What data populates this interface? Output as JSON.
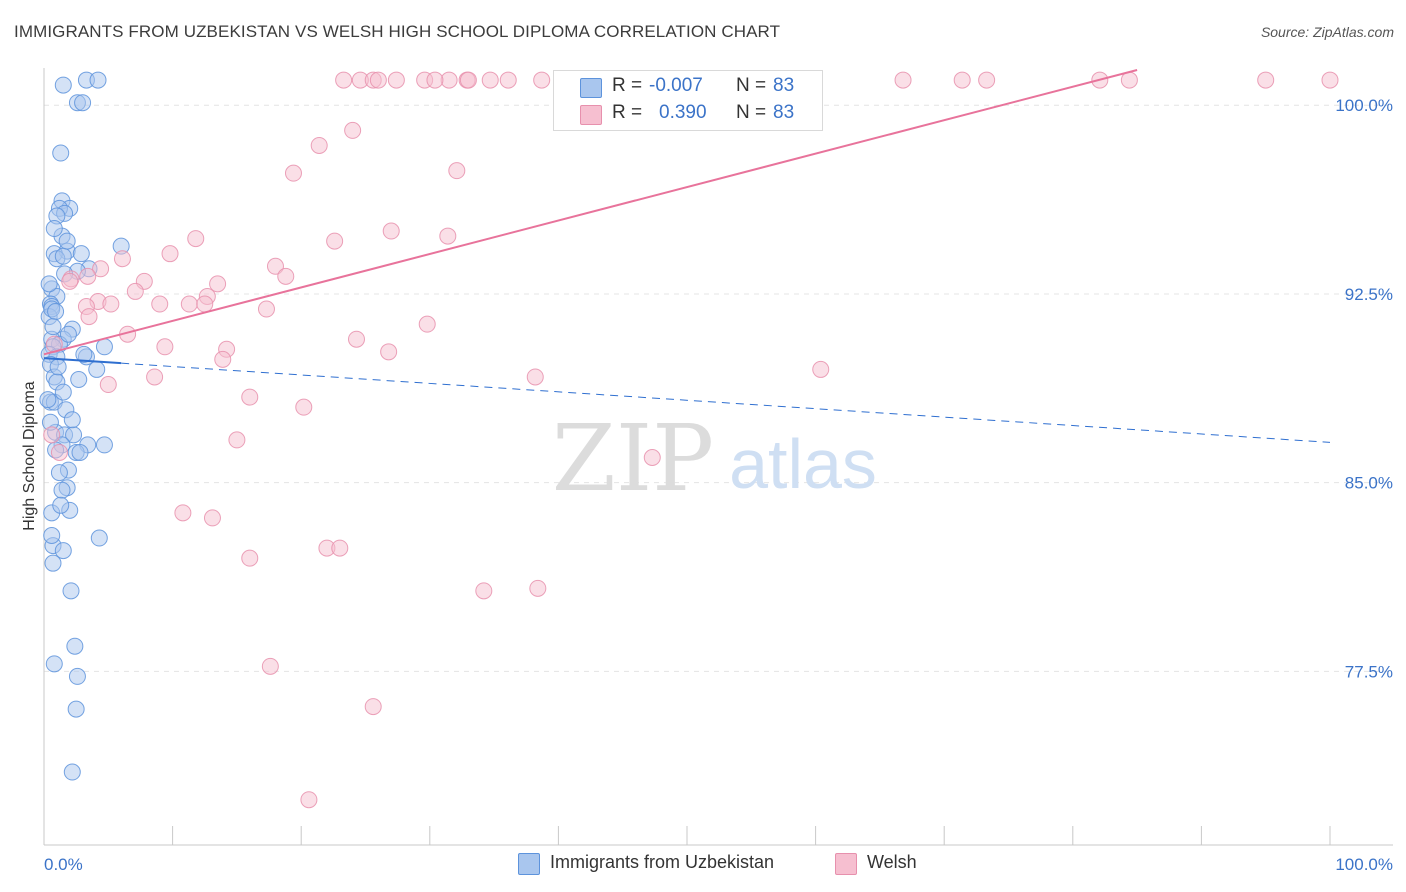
{
  "header": {
    "title": "IMMIGRANTS FROM UZBEKISTAN VS WELSH HIGH SCHOOL DIPLOMA CORRELATION CHART",
    "source": "Source: ZipAtlas.com"
  },
  "watermark": {
    "zip": "ZIP",
    "atlas": "atlas"
  },
  "legend": {
    "rows": [
      {
        "r_label": "R =",
        "r_value": "-0.007",
        "n_label": "N =",
        "n_value": "83"
      },
      {
        "r_label": "R =",
        "r_value": "0.390",
        "n_label": "N =",
        "n_value": "83"
      }
    ]
  },
  "bottom_legend": {
    "series1": "Immigrants from Uzbekistan",
    "series2": "Welsh"
  },
  "colors": {
    "blue_fill": "#a9c6ee",
    "blue_stroke": "#5d93dc",
    "blue_line": "#2f6fd0",
    "pink_fill": "#f6bfd0",
    "pink_stroke": "#e790ad",
    "pink_line": "#e8739b",
    "tick_label": "#3b73c8",
    "grid": "#e4e4e4"
  },
  "chart_data": {
    "type": "scatter",
    "title": "IMMIGRANTS FROM UZBEKISTAN VS WELSH HIGH SCHOOL DIPLOMA CORRELATION CHART",
    "xlabel": "",
    "ylabel": "High School Diploma",
    "xlim": [
      0,
      100
    ],
    "ylim": [
      70.6,
      101.4
    ],
    "x_tick_labels": [
      "0.0%",
      "100.0%"
    ],
    "y_ticks": [
      77.5,
      85.0,
      92.5,
      100.0
    ],
    "y_tick_labels": [
      "77.5%",
      "85.0%",
      "92.5%",
      "100.0%"
    ],
    "grid": true,
    "legend_position": "top-center",
    "series": [
      {
        "name": "Immigrants from Uzbekistan",
        "r": -0.007,
        "n": 83,
        "trend": {
          "x": [
            0.0,
            100.0
          ],
          "y": [
            89.95,
            86.6
          ],
          "solid_until_x": 6.0
        },
        "points": [
          [
            3.3,
            101.0
          ],
          [
            4.2,
            101.0
          ],
          [
            1.5,
            100.8
          ],
          [
            2.6,
            100.1
          ],
          [
            3.0,
            100.1
          ],
          [
            1.3,
            98.1
          ],
          [
            1.4,
            96.2
          ],
          [
            2.0,
            95.9
          ],
          [
            1.2,
            95.9
          ],
          [
            1.6,
            95.7
          ],
          [
            1.0,
            95.6
          ],
          [
            1.4,
            94.8
          ],
          [
            6.0,
            94.4
          ],
          [
            1.8,
            94.2
          ],
          [
            2.9,
            94.1
          ],
          [
            0.8,
            94.1
          ],
          [
            1.0,
            93.9
          ],
          [
            1.5,
            94.0
          ],
          [
            3.5,
            93.5
          ],
          [
            2.6,
            93.4
          ],
          [
            1.6,
            93.3
          ],
          [
            0.6,
            92.7
          ],
          [
            1.0,
            92.4
          ],
          [
            0.5,
            92.1
          ],
          [
            0.6,
            92.0
          ],
          [
            0.4,
            91.6
          ],
          [
            2.2,
            91.1
          ],
          [
            1.5,
            90.7
          ],
          [
            0.6,
            90.7
          ],
          [
            1.2,
            90.5
          ],
          [
            0.7,
            90.4
          ],
          [
            4.7,
            90.4
          ],
          [
            0.4,
            90.1
          ],
          [
            1.0,
            90.0
          ],
          [
            3.3,
            90.0
          ],
          [
            0.5,
            89.7
          ],
          [
            4.1,
            89.5
          ],
          [
            0.8,
            89.2
          ],
          [
            2.7,
            89.1
          ],
          [
            0.5,
            88.2
          ],
          [
            0.8,
            88.2
          ],
          [
            1.7,
            87.9
          ],
          [
            0.9,
            87.0
          ],
          [
            1.6,
            86.9
          ],
          [
            2.3,
            86.9
          ],
          [
            1.4,
            86.5
          ],
          [
            3.4,
            86.5
          ],
          [
            4.7,
            86.5
          ],
          [
            2.5,
            86.2
          ],
          [
            2.8,
            86.2
          ],
          [
            1.9,
            85.5
          ],
          [
            1.8,
            84.8
          ],
          [
            1.4,
            84.7
          ],
          [
            0.6,
            83.8
          ],
          [
            4.3,
            82.8
          ],
          [
            0.7,
            82.5
          ],
          [
            1.5,
            82.3
          ],
          [
            0.7,
            81.8
          ],
          [
            2.1,
            80.7
          ],
          [
            2.4,
            78.5
          ],
          [
            0.8,
            77.8
          ],
          [
            2.6,
            77.3
          ],
          [
            2.5,
            76.0
          ],
          [
            2.2,
            73.5
          ],
          [
            0.6,
            91.9
          ],
          [
            0.9,
            91.8
          ],
          [
            1.9,
            90.9
          ],
          [
            3.1,
            90.1
          ],
          [
            1.0,
            89.0
          ],
          [
            0.3,
            88.3
          ],
          [
            0.5,
            87.4
          ],
          [
            1.2,
            85.4
          ],
          [
            2.0,
            83.9
          ],
          [
            0.8,
            95.1
          ],
          [
            1.8,
            94.6
          ],
          [
            0.4,
            92.9
          ],
          [
            0.7,
            91.2
          ],
          [
            1.1,
            89.6
          ],
          [
            1.5,
            88.6
          ],
          [
            2.2,
            87.5
          ],
          [
            0.9,
            86.3
          ],
          [
            1.3,
            84.1
          ],
          [
            0.6,
            82.9
          ]
        ]
      },
      {
        "name": "Welsh",
        "r": 0.39,
        "n": 83,
        "trend": {
          "x": [
            0.0,
            85.0
          ],
          "y": [
            90.1,
            101.4
          ]
        },
        "points": [
          [
            23.3,
            101.0
          ],
          [
            24.6,
            101.0
          ],
          [
            25.6,
            101.0
          ],
          [
            26.0,
            101.0
          ],
          [
            31.5,
            101.0
          ],
          [
            27.4,
            101.0
          ],
          [
            29.6,
            101.0
          ],
          [
            30.4,
            101.0
          ],
          [
            32.9,
            101.0
          ],
          [
            33.0,
            101.0
          ],
          [
            34.7,
            101.0
          ],
          [
            36.1,
            101.0
          ],
          [
            38.7,
            101.0
          ],
          [
            40.3,
            101.0
          ],
          [
            41.0,
            101.0
          ],
          [
            43.9,
            101.0
          ],
          [
            47.7,
            101.0
          ],
          [
            48.9,
            101.0
          ],
          [
            55.0,
            101.0
          ],
          [
            55.3,
            101.0
          ],
          [
            66.8,
            101.0
          ],
          [
            71.4,
            101.0
          ],
          [
            73.3,
            101.0
          ],
          [
            82.1,
            101.0
          ],
          [
            84.4,
            101.0
          ],
          [
            95.0,
            101.0
          ],
          [
            100.0,
            101.0
          ],
          [
            24.0,
            99.0
          ],
          [
            21.4,
            98.4
          ],
          [
            19.4,
            97.3
          ],
          [
            32.1,
            97.4
          ],
          [
            27.0,
            95.0
          ],
          [
            31.4,
            94.8
          ],
          [
            11.8,
            94.7
          ],
          [
            22.6,
            94.6
          ],
          [
            6.1,
            93.9
          ],
          [
            9.8,
            94.1
          ],
          [
            18.0,
            93.6
          ],
          [
            4.4,
            93.5
          ],
          [
            18.8,
            93.2
          ],
          [
            2.1,
            93.1
          ],
          [
            3.4,
            93.2
          ],
          [
            7.8,
            93.0
          ],
          [
            13.5,
            92.9
          ],
          [
            7.1,
            92.6
          ],
          [
            12.7,
            92.4
          ],
          [
            11.3,
            92.1
          ],
          [
            9.0,
            92.1
          ],
          [
            4.2,
            92.2
          ],
          [
            12.5,
            92.1
          ],
          [
            5.2,
            92.1
          ],
          [
            3.3,
            92.0
          ],
          [
            17.3,
            91.9
          ],
          [
            3.5,
            91.6
          ],
          [
            29.8,
            91.3
          ],
          [
            6.5,
            90.9
          ],
          [
            24.3,
            90.7
          ],
          [
            9.4,
            90.4
          ],
          [
            14.2,
            90.3
          ],
          [
            26.8,
            90.2
          ],
          [
            13.9,
            89.9
          ],
          [
            60.4,
            89.5
          ],
          [
            8.6,
            89.2
          ],
          [
            38.2,
            89.2
          ],
          [
            16.0,
            88.4
          ],
          [
            20.2,
            88.0
          ],
          [
            0.6,
            86.9
          ],
          [
            15.0,
            86.7
          ],
          [
            47.3,
            86.0
          ],
          [
            10.8,
            83.8
          ],
          [
            13.1,
            83.6
          ],
          [
            16.0,
            82.0
          ],
          [
            22.0,
            82.4
          ],
          [
            23.0,
            82.4
          ],
          [
            34.2,
            80.7
          ],
          [
            38.4,
            80.8
          ],
          [
            17.6,
            77.7
          ],
          [
            25.6,
            76.1
          ],
          [
            20.6,
            72.4
          ],
          [
            1.2,
            86.2
          ],
          [
            2.0,
            93.0
          ],
          [
            5.0,
            88.9
          ],
          [
            0.8,
            90.5
          ]
        ]
      }
    ]
  }
}
